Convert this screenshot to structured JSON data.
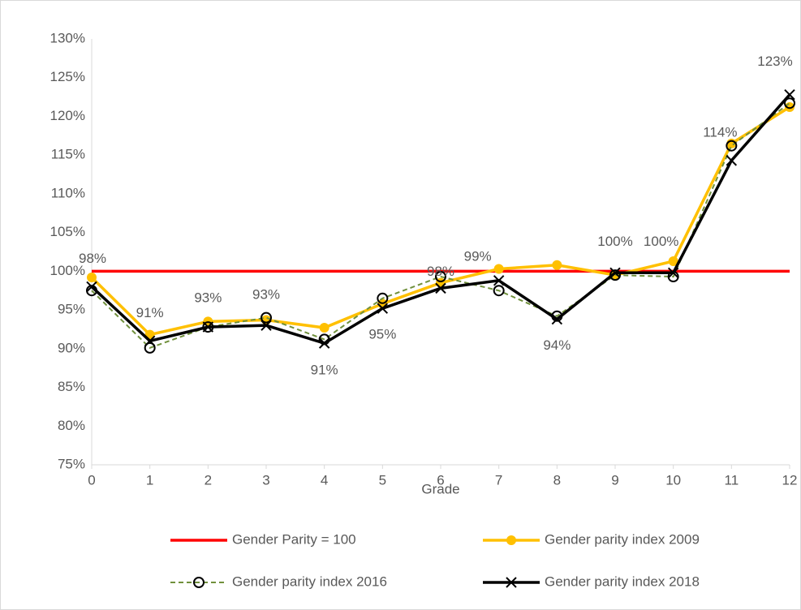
{
  "chart_data": {
    "type": "line",
    "x_label": "Grade",
    "x": [
      0,
      1,
      2,
      3,
      4,
      5,
      6,
      7,
      8,
      9,
      10,
      11,
      12
    ],
    "xlim": [
      0,
      12
    ],
    "xticks": [
      0,
      1,
      2,
      3,
      4,
      5,
      6,
      7,
      8,
      9,
      10,
      11,
      12
    ],
    "ylim": [
      75,
      130
    ],
    "yticks": [
      {
        "value": 75,
        "label": "75%"
      },
      {
        "value": 80,
        "label": "80%"
      },
      {
        "value": 85,
        "label": "85%"
      },
      {
        "value": 90,
        "label": "90%"
      },
      {
        "value": 95,
        "label": "95%"
      },
      {
        "value": 100,
        "label": "100%"
      },
      {
        "value": 105,
        "label": "105%"
      },
      {
        "value": 110,
        "label": "110%"
      },
      {
        "value": 115,
        "label": "115%"
      },
      {
        "value": 120,
        "label": "120%"
      },
      {
        "value": 125,
        "label": "125%"
      },
      {
        "value": 130,
        "label": "130%"
      }
    ],
    "grid": false,
    "legend": "bottom",
    "series": [
      {
        "name": "Gender Parity = 100",
        "color": "#ff0000",
        "marker": "none",
        "dash": false,
        "values": [
          100,
          100,
          100,
          100,
          100,
          100,
          100,
          100,
          100,
          100,
          100,
          100,
          100
        ]
      },
      {
        "name": "Gender parity index 2009",
        "color": "#ffc000",
        "marker": "filled-circle",
        "dash": false,
        "values": [
          99.2,
          91.8,
          93.5,
          93.7,
          92.7,
          95.8,
          98.5,
          100.3,
          100.8,
          99.5,
          101.3,
          116.5,
          121.2
        ]
      },
      {
        "name": "Gender parity index 2016",
        "color": "#70903c",
        "marker": "open-circle",
        "dash": true,
        "values": [
          97.5,
          90.1,
          92.8,
          94.0,
          91.2,
          96.5,
          99.3,
          97.5,
          94.2,
          99.5,
          99.3,
          116.2,
          121.7
        ]
      },
      {
        "name": "Gender parity index 2018",
        "color": "#000000",
        "marker": "cross",
        "dash": false,
        "values": [
          98,
          91,
          92.8,
          93,
          90.7,
          95.2,
          97.8,
          98.8,
          93.8,
          99.8,
          99.8,
          114.3,
          122.8
        ],
        "value_labels": [
          "98%",
          "91%",
          "93%",
          "93%",
          "91%",
          "95%",
          "98%",
          "99%",
          "94%",
          "100%",
          "100%",
          "114%",
          "123%"
        ]
      }
    ]
  }
}
